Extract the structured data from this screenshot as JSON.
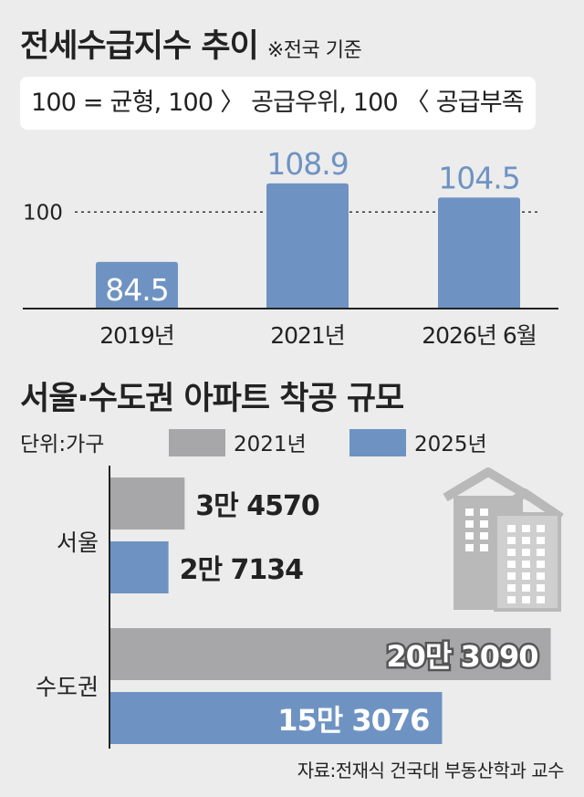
{
  "title1": {
    "main": "전세수급지수 추이",
    "note": "※전국 기준"
  },
  "legend_text": "100 = 균형, 100 〉 공급우위, 100 〈 공급부족",
  "title2": "서울·수도권 아파트 착공 규모",
  "unit": "단위:가구",
  "source": "자료:전재식 건국대 부동산학과 교수",
  "colors": {
    "blue": "#6e93c3",
    "gray": "#a7a7a9",
    "background": "#ececec"
  },
  "chart_data": [
    {
      "type": "bar",
      "title": "전세수급지수 추이",
      "categories": [
        "2019년",
        "2021년",
        "2026년 6월"
      ],
      "values": [
        84.5,
        108.9,
        104.5
      ],
      "value_labels": [
        "84.5",
        "108.9",
        "104.5"
      ],
      "reference_line": {
        "value": 100,
        "label": "100"
      },
      "ylim": [
        70,
        112
      ]
    },
    {
      "type": "bar",
      "orientation": "horizontal",
      "title": "서울·수도권 아파트 착공 규모",
      "categories": [
        "서울",
        "수도권"
      ],
      "series": [
        {
          "name": "2021년",
          "values": [
            34570,
            203090
          ],
          "labels": [
            "3만 4570",
            "20만 3090"
          ],
          "color": "#a7a7a9"
        },
        {
          "name": "2025년",
          "values": [
            27134,
            153076
          ],
          "labels": [
            "2만 7134",
            "15만 3076"
          ],
          "color": "#6e93c3"
        }
      ],
      "xlim": [
        0,
        210000
      ]
    }
  ]
}
